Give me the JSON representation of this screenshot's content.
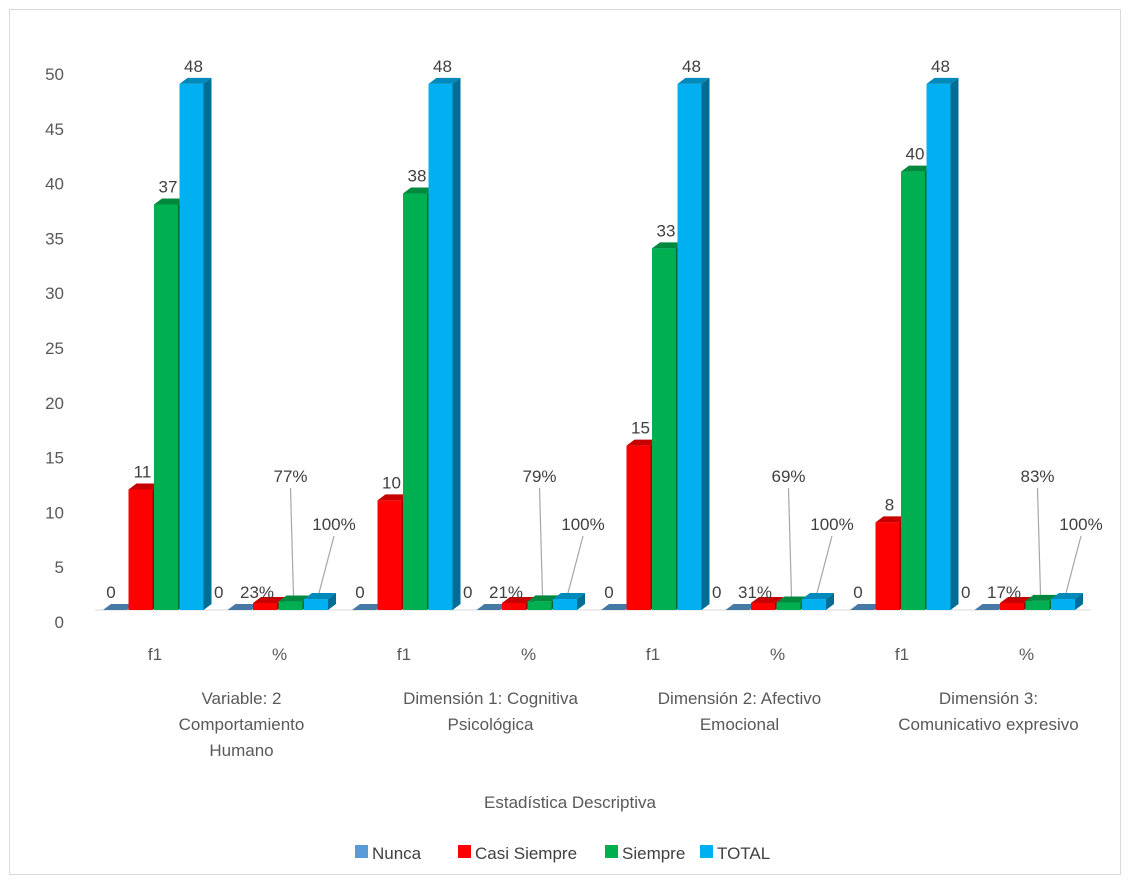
{
  "chart_data": {
    "type": "bar",
    "xlabel": "Estadística Descriptiva",
    "ylabel": "",
    "ylim": [
      0,
      50
    ],
    "ytick_step": 5,
    "grid": false,
    "legend_position": "bottom",
    "categories": [
      "f1",
      "%",
      "f1",
      "%",
      "f1",
      "%",
      "f1",
      "%"
    ],
    "groups": [
      {
        "lines": [
          "Variable: 2",
          "Comportamiento",
          "Humano"
        ]
      },
      {
        "lines": [
          "Dimensión 1: Cognitiva",
          "Psicológica"
        ]
      },
      {
        "lines": [
          "Dimensión 2: Afectivo",
          "Emocional"
        ]
      },
      {
        "lines": [
          "Dimensión 3:",
          "Comunicativo expresivo"
        ]
      }
    ],
    "series": [
      {
        "name": "Nunca",
        "color": "#5b9bd5",
        "values": [
          0,
          0,
          0,
          0,
          0,
          0,
          0,
          0
        ],
        "labels": [
          "0",
          "0",
          "0",
          "0",
          "0",
          "0",
          "0",
          "0"
        ]
      },
      {
        "name": "Casi Siempre",
        "color": "#ff0000",
        "values": [
          11,
          0.23,
          10,
          0.21,
          15,
          0.31,
          8,
          0.17
        ],
        "labels": [
          "11",
          "23%",
          "10",
          "21%",
          "15",
          "31%",
          "8",
          "17%"
        ]
      },
      {
        "name": "Siempre",
        "color": "#00b050",
        "values": [
          37,
          0.77,
          38,
          0.79,
          33,
          0.69,
          40,
          0.83
        ],
        "labels": [
          "37",
          "77%",
          "38",
          "79%",
          "33",
          "69%",
          "40",
          "83%"
        ]
      },
      {
        "name": "TOTAL",
        "color": "#00b0f0",
        "values": [
          48,
          1,
          48,
          1,
          48,
          1,
          48,
          1
        ],
        "labels": [
          "48",
          "100%",
          "48",
          "100%",
          "48",
          "100%",
          "48",
          "100%"
        ]
      }
    ]
  }
}
